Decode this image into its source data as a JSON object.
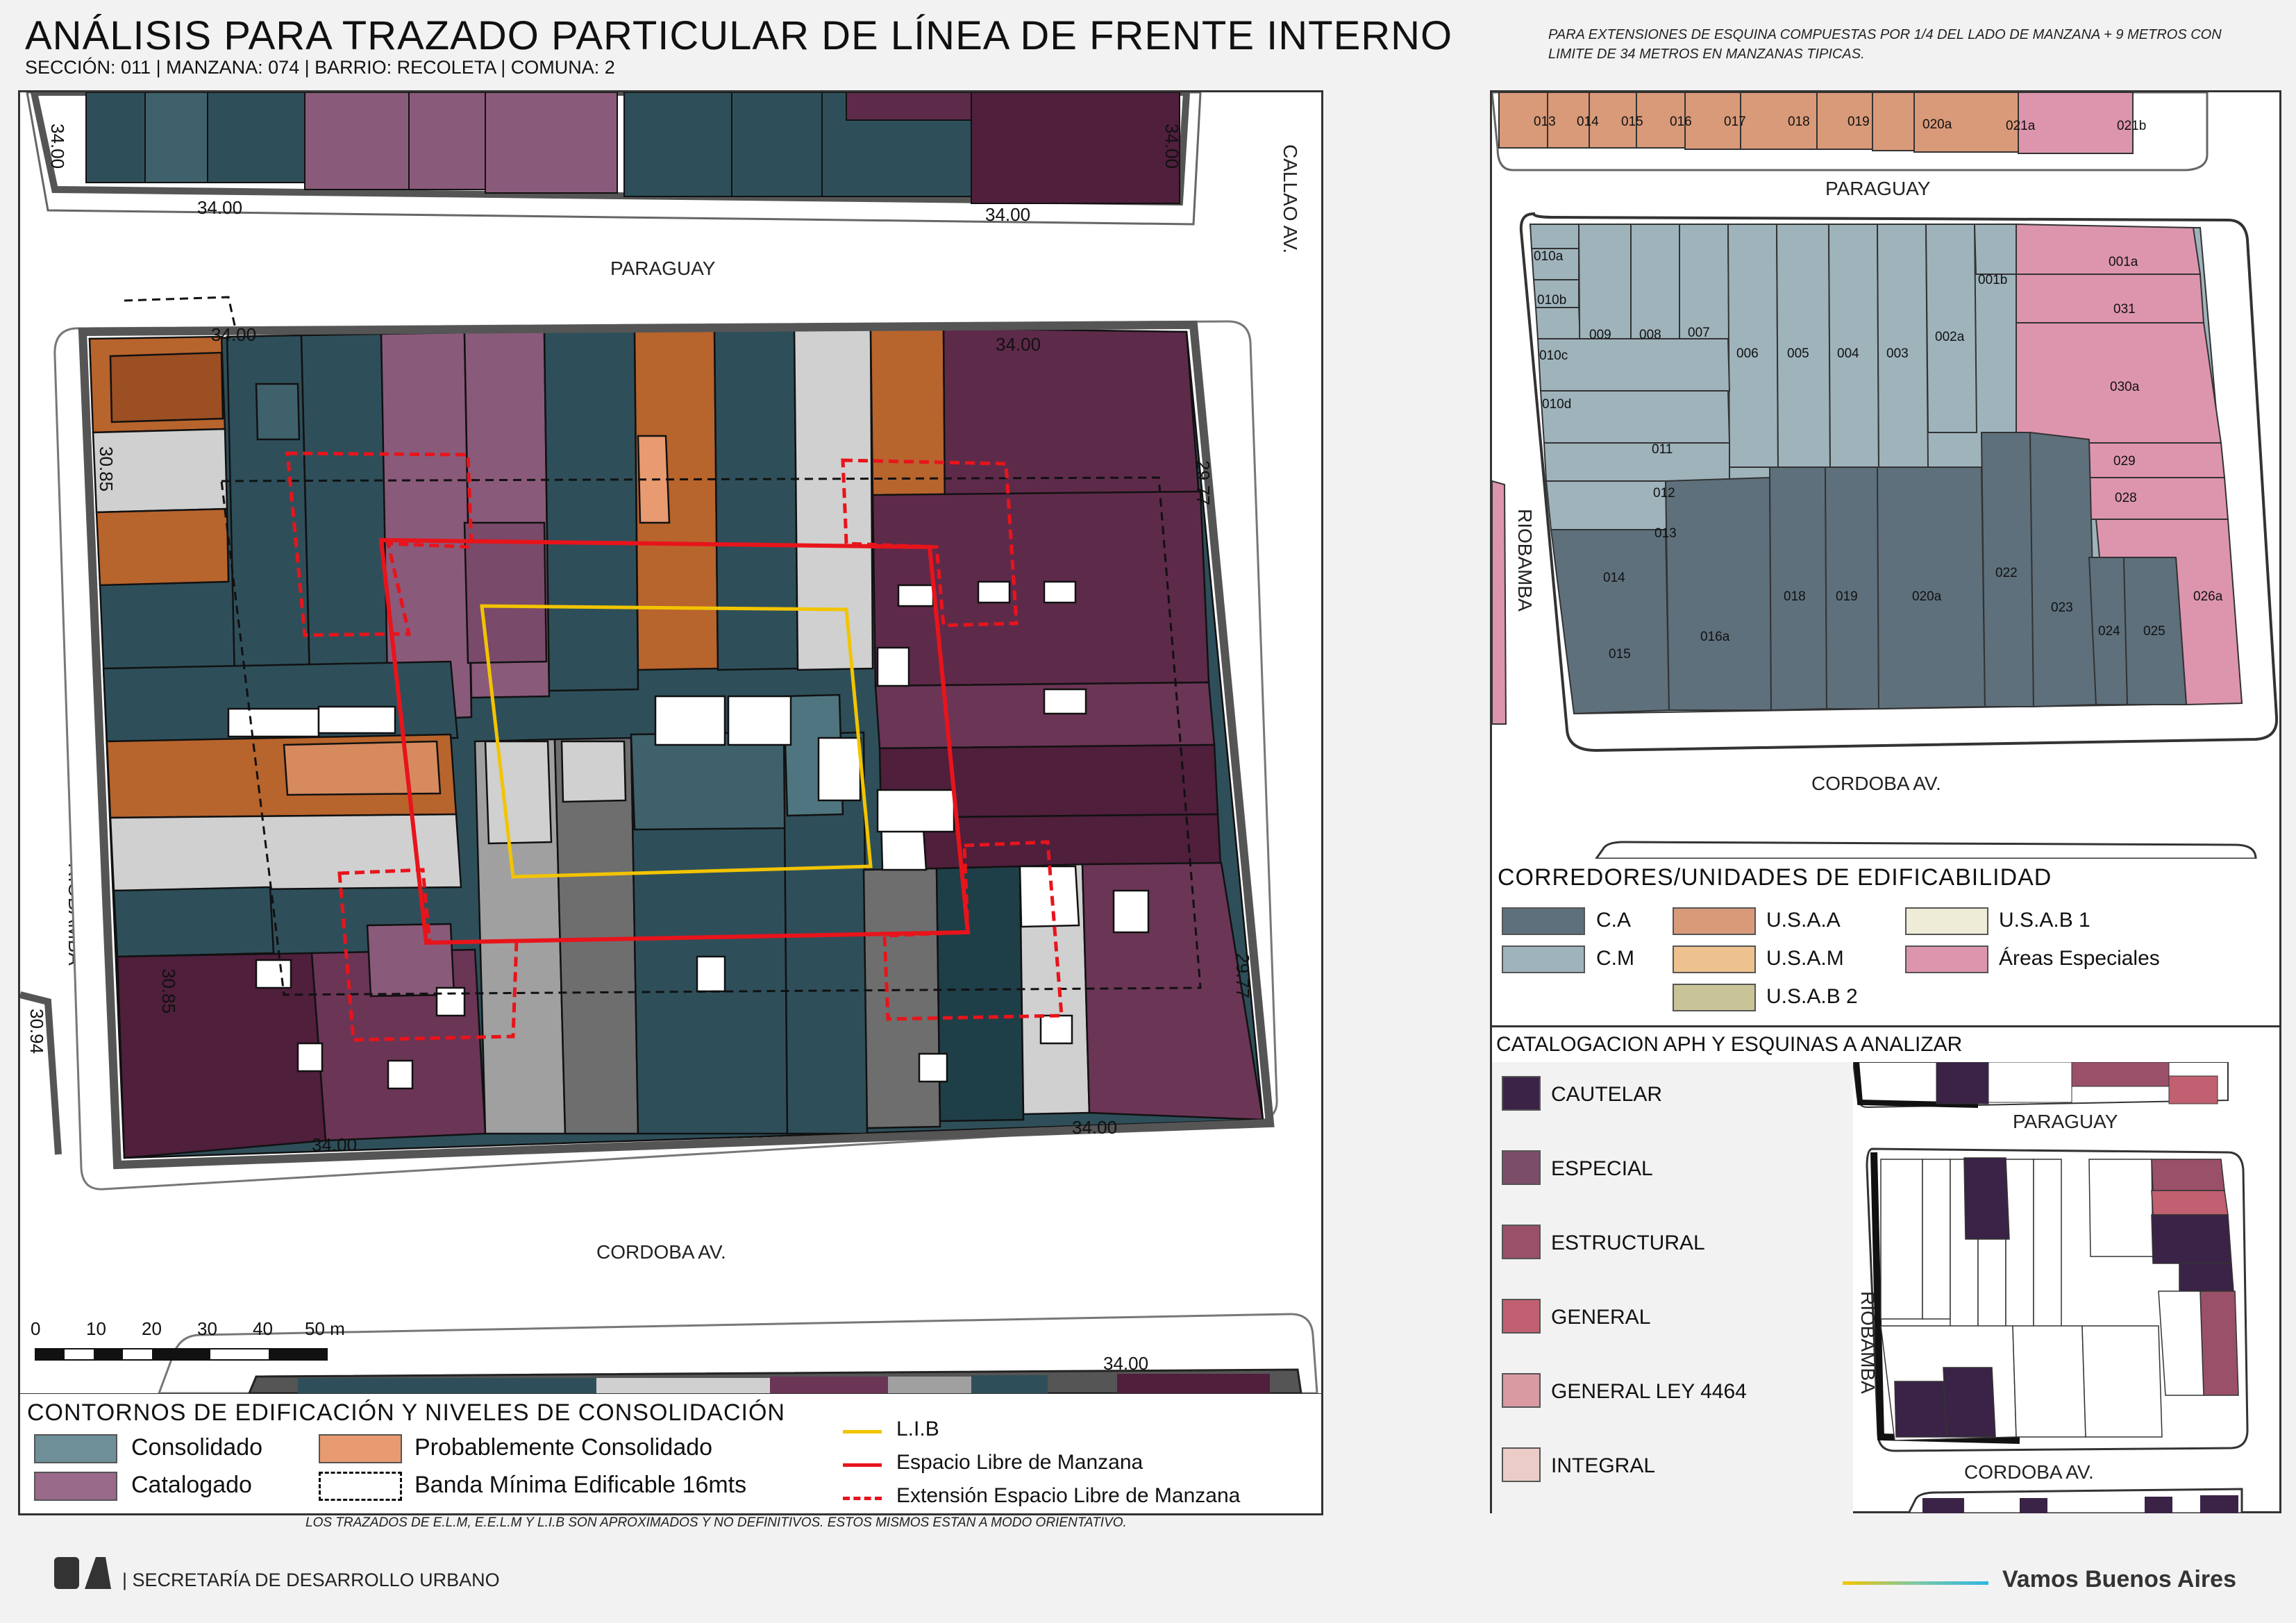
{
  "header": {
    "title": "ANÁLISIS PARA TRAZADO PARTICULAR DE LÍNEA DE FRENTE INTERNO",
    "subtitle": "SECCIÓN: 011 |  MANZANA: 074 | BARRIO: RECOLETA | COMUNA: 2",
    "note": "PARA EXTENSIONES DE ESQUINA COMPUESTAS POR 1/4 DEL LADO DE MANZANA + 9 METROS CON LIMITE DE 34 METROS EN MANZANAS TIPICAS."
  },
  "main_map": {
    "streets": {
      "north": "PARAGUAY",
      "south": "CORDOBA AV.",
      "west": "RIOBAMBA",
      "east": "CALLAO AV."
    },
    "dimensions": {
      "top_left": "34.00",
      "top_right": "34.00",
      "left_top": "30.85",
      "left_bottom": "30.85",
      "right_top": "29.77",
      "right_bottom": "29.77",
      "bottom_left": "34.00",
      "bottom_right": "34.00",
      "upper_block_left": "34.00",
      "upper_block_left_side": "34.00",
      "upper_block_right": "34.00",
      "upper_block_right_side": "34.00",
      "lower_block": "34.00",
      "west_block_side": "30.94"
    },
    "scale": {
      "ticks": [
        "0",
        "10",
        "20",
        "30",
        "40",
        "50 m"
      ]
    }
  },
  "legend_main": {
    "title": "CONTORNOS DE EDIFICACIÓN Y NIVELES DE CONSOLIDACIÓN",
    "items": [
      {
        "label": "Consolidado",
        "color": "#6f8f99"
      },
      {
        "label": "Probablemente Consolidado",
        "color": "#e89b70"
      },
      {
        "label": "Catalogado",
        "color": "#9a6a8a"
      },
      {
        "label": "Banda Mínima Edificable 16mts",
        "color": "#ffffff"
      }
    ],
    "lines": [
      {
        "label": "L.I.B",
        "color": "#f2c400"
      },
      {
        "label": "Espacio Libre de Manzana",
        "color": "#e8141b"
      },
      {
        "label": "Extensión Espacio Libre de Manzana",
        "color": "#e8141b"
      }
    ]
  },
  "parcel_map": {
    "streets": {
      "north": "PARAGUAY",
      "south": "CORDOBA AV.",
      "west": "RIOBAMBA"
    },
    "top_lots": [
      "013",
      "014",
      "015",
      "016",
      "017",
      "018",
      "019",
      "020a",
      "021a",
      "021b"
    ],
    "lots": [
      "010a",
      "010b",
      "010c",
      "010d",
      "009",
      "008",
      "007",
      "006",
      "005",
      "004",
      "003",
      "002a",
      "001b",
      "001a",
      "031",
      "030a",
      "029",
      "028",
      "011",
      "012",
      "013",
      "014",
      "015",
      "016a",
      "018",
      "019",
      "020a",
      "022",
      "023",
      "024",
      "025",
      "026a"
    ]
  },
  "corredores": {
    "title": "CORREDORES/UNIDADES DE EDIFICABILIDAD",
    "items": [
      {
        "label": "C.A",
        "color": "#5e707c"
      },
      {
        "label": "C.M",
        "color": "#9fb3bb"
      },
      {
        "label": "U.S.A.A",
        "color": "#d99a79"
      },
      {
        "label": "U.S.A.M",
        "color": "#edc28f"
      },
      {
        "label": "U.S.A.B 2",
        "color": "#c9c497"
      },
      {
        "label": "U.S.A.B 1",
        "color": "#eeebd6"
      },
      {
        "label": "Áreas Especiales",
        "color": "#dd95ad"
      }
    ]
  },
  "catalogacion": {
    "title": "CATALOGACION APH Y ESQUINAS A ANALIZAR",
    "items": [
      {
        "label": "CAUTELAR",
        "color": "#3a2346"
      },
      {
        "label": "ESPECIAL",
        "color": "#7c4d68"
      },
      {
        "label": "ESTRUCTURAL",
        "color": "#9a5068"
      },
      {
        "label": "GENERAL",
        "color": "#c06070"
      },
      {
        "label": "GENERAL LEY 4464",
        "color": "#d99aa2"
      },
      {
        "label": "INTEGRAL",
        "color": "#ecccc7"
      }
    ],
    "streets": {
      "north": "PARAGUAY",
      "south": "CORDOBA AV.",
      "west": "RIOBAMBA"
    }
  },
  "footer": {
    "note": "LOS TRAZADOS DE E.L.M, E.E.L.M Y L.I.B SON APROXIMADOS Y NO DEFINITIVOS. ESTOS MISMOS ESTAN A MODO ORIENTATIVO.",
    "logo": "BA",
    "org": "| SECRETARÍA DE DESARROLLO URBANO",
    "slogan": "Vamos Buenos Aires"
  }
}
